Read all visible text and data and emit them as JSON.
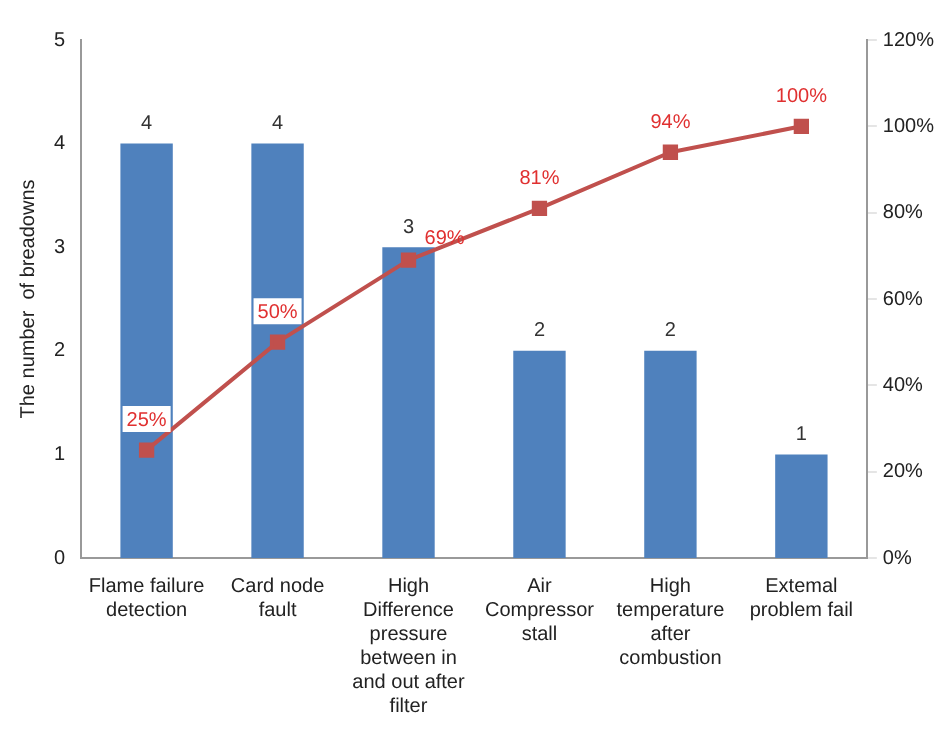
{
  "chart_data": {
    "type": "bar",
    "ylabel": "The number  of breadowns",
    "categories": [
      "Flame failure detection",
      "Card node fault",
      "High Difference pressure between in and out after filter",
      "Air Compressor stall",
      "High temperature after combustion",
      "Extemal problem fail"
    ],
    "series": [
      {
        "color": "#4f81bd",
        "values": [
          4,
          4,
          3,
          2,
          2,
          1
        ],
        "value_labels": [
          "4",
          "4",
          "3",
          "2",
          "2",
          "1"
        ]
      },
      {
        "type": "line",
        "axis": "y2",
        "color": "#c0504d",
        "marker": "square",
        "values": [
          25,
          50,
          69,
          81,
          94,
          100
        ],
        "value_labels": [
          "25%",
          "50%",
          "69%",
          "81%",
          "94%",
          "100%"
        ]
      }
    ],
    "ylim": [
      0,
      5
    ],
    "yticks": [
      0,
      1,
      2,
      3,
      4,
      5
    ],
    "y2lim": [
      0,
      120
    ],
    "y2ticks": [
      {
        "value": 0,
        "label": "0%"
      },
      {
        "value": 20,
        "label": "20%"
      },
      {
        "value": 40,
        "label": "40%"
      },
      {
        "value": 60,
        "label": "60%"
      },
      {
        "value": 80,
        "label": "80%"
      },
      {
        "value": 100,
        "label": "100%"
      },
      {
        "value": 120,
        "label": "120%"
      }
    ],
    "grid": false,
    "legend": false
  }
}
